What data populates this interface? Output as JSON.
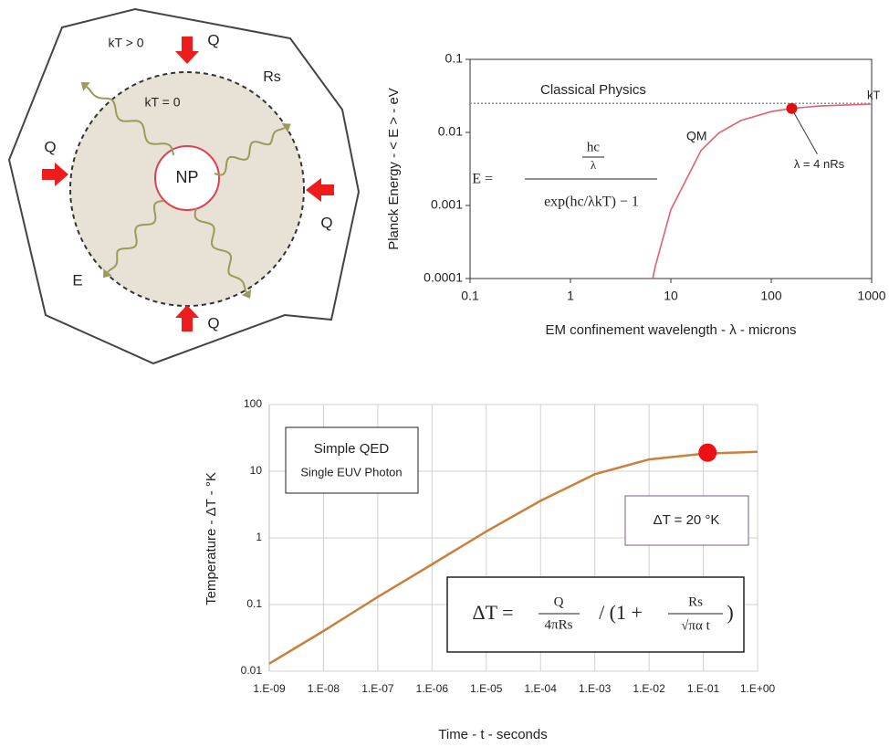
{
  "diagram": {
    "labels": [
      "kT > 0",
      "Q",
      "Rs",
      "kT = 0",
      "NP",
      "Q",
      "Q",
      "E",
      "Q"
    ]
  },
  "chart_data": [
    {
      "type": "line",
      "log_x": true,
      "log_y": true,
      "grid": false,
      "x_label": "EM confinement wavelength - λ - microns",
      "y_label": "Planck Energy - < E > - eV",
      "x": [
        0.1,
        1,
        6.6,
        7,
        10,
        20,
        30,
        50,
        100,
        160,
        300,
        1000
      ],
      "series": [
        {
          "name": "Classical Physics",
          "color": "#999999",
          "dashed": true,
          "values": [
            0.025,
            0.025,
            0.025,
            0.025,
            0.025,
            0.025,
            0.025,
            0.025,
            0.025,
            0.025,
            0.025,
            0.025
          ]
        },
        {
          "name": "QM",
          "color": "#e06070",
          "values": [
            null,
            null,
            0.0001,
            0.000148,
            0.000876,
            0.00567,
            0.00979,
            0.0146,
            0.0193,
            0.0213,
            0.023,
            0.0244
          ]
        }
      ],
      "xlim": [
        0.1,
        1000
      ],
      "ylim": [
        0.0001,
        0.1
      ],
      "xticks": [
        0.1,
        1,
        10,
        100,
        1000
      ],
      "yticks": [
        0.1,
        0.01,
        0.001,
        0.0001
      ],
      "annotations": [
        "kT"
      ],
      "highlight": {
        "x": 160,
        "y": 0.0213,
        "label": "λ = 4 nRs",
        "color": "#dd1111"
      },
      "formula": {
        "lhs": "E =",
        "num": "hc",
        "num_den": "λ",
        "den": "exp(hc/λkT) − 1"
      }
    },
    {
      "type": "line",
      "log_x": true,
      "log_y": true,
      "grid": true,
      "x_label": "Time - t - seconds",
      "y_label": "Temperature - ΔT - °K",
      "x": [
        1e-09,
        1e-08,
        1e-07,
        1e-06,
        1e-05,
        0.0001,
        0.001,
        0.01,
        0.1,
        1
      ],
      "series": [
        {
          "color": "#c8803c",
          "values": [
            0.013,
            0.04,
            0.13,
            0.4,
            1.25,
            3.6,
            9,
            15,
            18.3,
            19.5
          ]
        }
      ],
      "xlim": [
        1e-09,
        1
      ],
      "ylim": [
        0.01,
        100
      ],
      "xticks": [
        {
          "value": 1e-09,
          "label": "1.E-09"
        },
        {
          "value": 1e-08,
          "label": "1.E-08"
        },
        {
          "value": 1e-07,
          "label": "1.E-07"
        },
        {
          "value": 1e-06,
          "label": "1.E-06"
        },
        {
          "value": 1e-05,
          "label": "1.E-05"
        },
        {
          "value": 0.0001,
          "label": "1.E-04"
        },
        {
          "value": 0.001,
          "label": "1.E-03"
        },
        {
          "value": 0.01,
          "label": "1.E-02"
        },
        {
          "value": 0.1,
          "label": "1.E-01"
        },
        {
          "value": 1,
          "label": "1.E+00"
        }
      ],
      "yticks": [
        0.01,
        0.1,
        1,
        10,
        100
      ],
      "annotations": [
        "Simple QED",
        "Single EUV Photon",
        "ΔT = 20 °K"
      ],
      "highlight": {
        "x": 0.12,
        "y": 19,
        "color": "#ee1111"
      },
      "formula": {
        "lhs": "ΔT =",
        "num": "Q",
        "num_den": "4πRs",
        "mid": "/ (1 +",
        "num2": "Rs",
        "num2_den": "√πα t",
        "end": ")"
      }
    }
  ]
}
